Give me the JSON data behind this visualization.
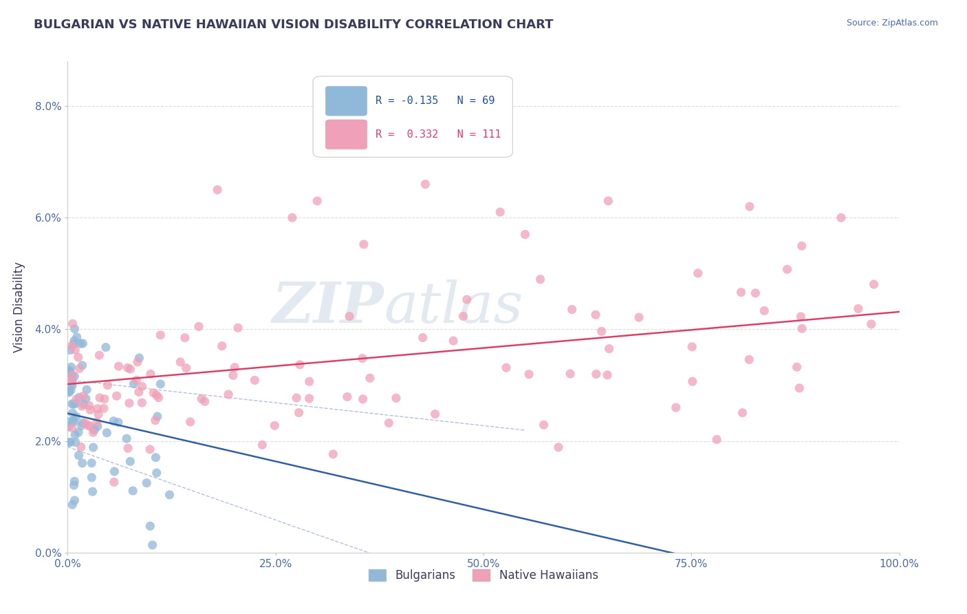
{
  "title": "BULGARIAN VS NATIVE HAWAIIAN VISION DISABILITY CORRELATION CHART",
  "source": "Source: ZipAtlas.com",
  "ylabel": "Vision Disability",
  "xlim": [
    0.0,
    1.0
  ],
  "ylim": [
    0.0,
    0.088
  ],
  "yticks": [
    0.0,
    0.02,
    0.04,
    0.06,
    0.08
  ],
  "ytick_labels": [
    "0.0%",
    "2.0%",
    "4.0%",
    "6.0%",
    "8.0%"
  ],
  "xticks": [
    0.0,
    0.25,
    0.5,
    0.75,
    1.0
  ],
  "xtick_labels": [
    "0.0%",
    "25.0%",
    "50.0%",
    "75.0%",
    "100.0%"
  ],
  "bulgarian_R": -0.135,
  "bulgarian_N": 69,
  "hawaiian_R": 0.332,
  "hawaiian_N": 111,
  "bulgarian_color": "#90b8d8",
  "hawaiian_color": "#f0a0b8",
  "bulgarian_line_color": "#3060a0",
  "hawaiian_line_color": "#d8406a",
  "ci_color": "#a0b0d0",
  "title_color": "#3a3a5a",
  "axis_color": "#4a6aaa",
  "watermark_zip": "ZIP",
  "watermark_atlas": "atlas",
  "watermark_color_zip": "#c8d4e8",
  "watermark_color_atlas": "#b8c8e0",
  "legend_r_color_bulgarian": "#2050a0",
  "legend_r_color_hawaiian": "#d8406a",
  "bg_color": "#ffffff",
  "grid_color": "#cccccc"
}
